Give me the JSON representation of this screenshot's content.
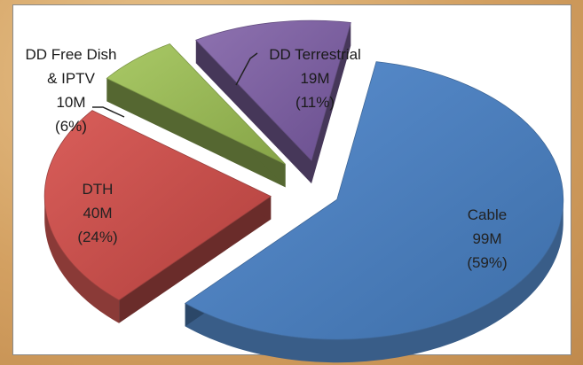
{
  "chart_data": {
    "type": "pie",
    "style": "3d-exploded",
    "categories": [
      "Cable",
      "DTH",
      "DD Free Dish & IPTV",
      "DD Terrestrial"
    ],
    "values": [
      99,
      40,
      10,
      19
    ],
    "percents": [
      59,
      24,
      6,
      11
    ],
    "units": "M",
    "colors": [
      "#4f81bd",
      "#c0504d",
      "#9bbb59",
      "#8064a2"
    ],
    "legend": "none",
    "labels": [
      {
        "lines": [
          "Cable",
          "99M",
          "(59%)"
        ]
      },
      {
        "lines": [
          "DTH",
          "40M",
          "(24%)"
        ]
      },
      {
        "lines": [
          "DD Free Dish",
          "& IPTV",
          "10M",
          "(6%)"
        ]
      },
      {
        "lines": [
          "DD Terrestrial",
          "19M",
          "(11%)"
        ]
      }
    ]
  }
}
